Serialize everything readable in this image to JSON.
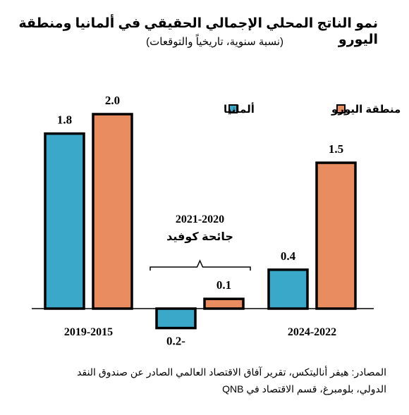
{
  "title": "نمو الناتج المحلي الإجمالي الحقيقي في ألمانيا ومنطقة اليورو",
  "subtitle": "(نسبة سنوية، تاريخياً والتوقعات)",
  "source_lines": [
    "المصادر: هيفر أناليتكس، تقرير آفاق الاقتصاد العالمي الصادر عن صندوق النقد",
    "الدولي، بلومبرغ، قسم الاقتصاد في QNB"
  ],
  "colors": {
    "germany": "#3aa8c8",
    "euro": "#e98c5f",
    "stroke": "#000000"
  },
  "chart_data": {
    "type": "bar",
    "categories": [
      "2019-2015",
      "2021-2020",
      "2024-2022"
    ],
    "series": [
      {
        "name": "ألمانيا",
        "values": [
          1.8,
          -0.2,
          0.4
        ]
      },
      {
        "name": "منطقة اليورو",
        "values": [
          2.0,
          0.1,
          1.5
        ]
      }
    ],
    "data_labels": [
      [
        "1.8",
        "0.2-",
        "0.4"
      ],
      [
        "2.0",
        "0.1",
        "1.5"
      ]
    ],
    "annotation": {
      "period": "2021-2020",
      "text": "جائحة كوفيد"
    },
    "xlabel": "",
    "ylabel": "",
    "ylim": [
      -0.3,
      2.2
    ],
    "legend": {
      "position": "top-right"
    },
    "grid": false
  }
}
